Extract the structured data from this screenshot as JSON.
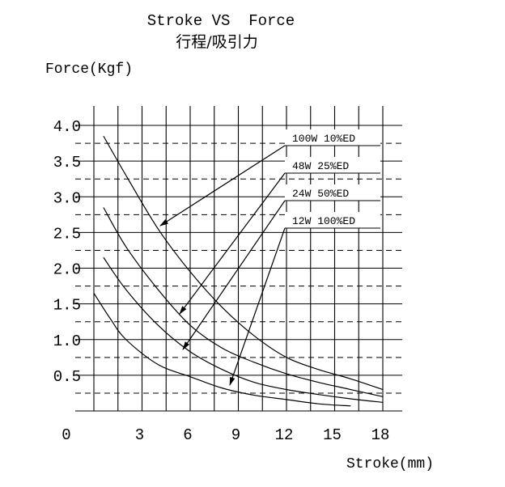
{
  "chart_data": {
    "type": "line",
    "title": "Stroke VS  Force",
    "subtitle": "行程/吸引力",
    "ylabel": "Force(Kgf)",
    "xlabel": "Stroke(mm)",
    "origin_label": "0",
    "xlim": [
      0,
      18
    ],
    "ylim": [
      0,
      4.0
    ],
    "x_ticks": [
      "3",
      "6",
      "9",
      "12",
      "15",
      "18"
    ],
    "y_ticks": [
      "4.0",
      "3.5",
      "3.0",
      "2.5",
      "2.0",
      "1.5",
      "1.0",
      "0.5"
    ],
    "grid": true,
    "series": [
      {
        "name": "100W 10%ED",
        "x": [
          0.6,
          2,
          4,
          6,
          8,
          10,
          12,
          14,
          16,
          18
        ],
        "y": [
          3.85,
          3.3,
          2.55,
          1.95,
          1.45,
          1.05,
          0.75,
          0.58,
          0.45,
          0.3
        ]
      },
      {
        "name": "48W 25%ED",
        "x": [
          0.6,
          2,
          4,
          6,
          8,
          10,
          12,
          14,
          16,
          18
        ],
        "y": [
          2.85,
          2.3,
          1.7,
          1.2,
          0.88,
          0.68,
          0.52,
          0.4,
          0.3,
          0.2
        ]
      },
      {
        "name": "24W  50%ED",
        "x": [
          0.6,
          2,
          4,
          6,
          8,
          10,
          12,
          14,
          16,
          18
        ],
        "y": [
          2.15,
          1.7,
          1.2,
          0.83,
          0.58,
          0.4,
          0.3,
          0.23,
          0.17,
          0.12
        ]
      },
      {
        "name": "12W 100%ED",
        "x": [
          0,
          1,
          2,
          4,
          6,
          8,
          10,
          12,
          14,
          16
        ],
        "y": [
          1.65,
          1.3,
          1.0,
          0.65,
          0.48,
          0.32,
          0.22,
          0.16,
          0.1,
          0.07
        ]
      }
    ],
    "legend_position": "top-right, with arrows pointing to curves"
  }
}
